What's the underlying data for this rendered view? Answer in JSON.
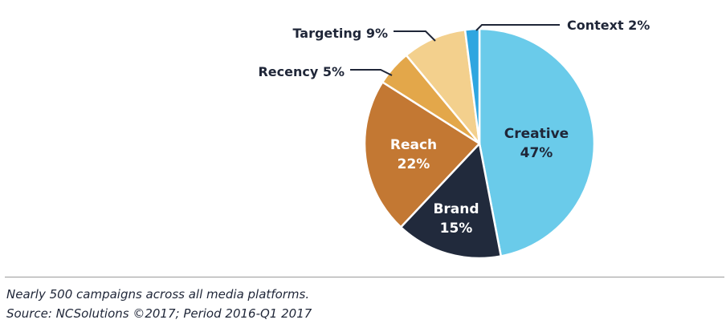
{
  "chart_data": {
    "type": "pie",
    "title": "",
    "slices": [
      {
        "label": "Creative",
        "value": 47,
        "value_label": "47%",
        "color": "#6acbea",
        "label_position": "inside",
        "text_color": "#1f2638"
      },
      {
        "label": "Brand",
        "value": 15,
        "value_label": "15%",
        "color": "#212a3c",
        "label_position": "inside",
        "text_color": "#ffffff"
      },
      {
        "label": "Reach",
        "value": 22,
        "value_label": "22%",
        "color": "#c37833",
        "label_position": "inside",
        "text_color": "#ffffff"
      },
      {
        "label": "Recency",
        "value": 5,
        "value_label": "5%",
        "color": "#e3a74a",
        "label_position": "outside"
      },
      {
        "label": "Targeting",
        "value": 9,
        "value_label": "9%",
        "color": "#f3d08d",
        "label_position": "outside"
      },
      {
        "label": "Context",
        "value": 2,
        "value_label": "2%",
        "color": "#2fa6e0",
        "label_position": "outside"
      }
    ],
    "start_position": "top",
    "direction": "clockwise",
    "leader_line_color": "#1f2638"
  },
  "footnote": {
    "line1": "Nearly 500 campaigns across all media platforms.",
    "line2": "Source: NCSolutions ©2017;  Period 2016-Q1 2017"
  }
}
